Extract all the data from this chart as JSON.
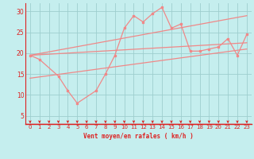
{
  "xlabel": "Vent moyen/en rafales ( km/h )",
  "xlim": [
    -0.5,
    23.5
  ],
  "ylim": [
    3,
    32
  ],
  "yticks": [
    5,
    10,
    15,
    20,
    25,
    30
  ],
  "xticks": [
    0,
    1,
    2,
    3,
    4,
    5,
    6,
    7,
    8,
    9,
    10,
    11,
    12,
    13,
    14,
    15,
    16,
    17,
    18,
    19,
    20,
    21,
    22,
    23
  ],
  "bg_color": "#c5eeee",
  "grid_color": "#9ecece",
  "line_color": "#f08888",
  "axis_color": "#dd2222",
  "label_color": "#dd2222",
  "zigzag_x": [
    0,
    1,
    3,
    4,
    5,
    7,
    8,
    9,
    10,
    11,
    12,
    13,
    14,
    15,
    16,
    17,
    18,
    19,
    20,
    21,
    22,
    23
  ],
  "zigzag_y": [
    19.5,
    18.5,
    14.5,
    11.0,
    8.0,
    11.0,
    15.0,
    19.5,
    26.0,
    29.0,
    27.5,
    29.5,
    31.0,
    26.0,
    27.0,
    20.5,
    20.5,
    21.0,
    21.5,
    23.5,
    19.5,
    24.5
  ],
  "trend1_x": [
    0,
    23
  ],
  "trend1_y": [
    19.5,
    29.0
  ],
  "trend2_x": [
    0,
    23
  ],
  "trend2_y": [
    19.5,
    22.5
  ],
  "trend3_x": [
    0,
    23
  ],
  "trend3_y": [
    14.0,
    21.0
  ],
  "figsize": [
    3.2,
    2.0
  ],
  "dpi": 100
}
